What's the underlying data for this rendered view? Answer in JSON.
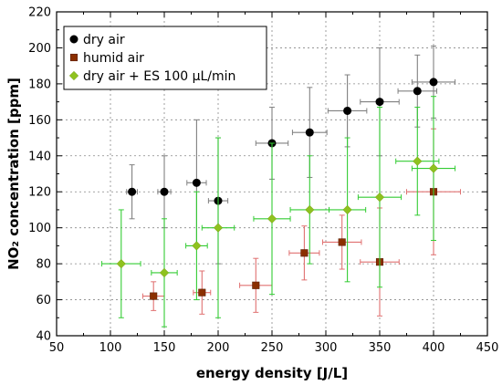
{
  "chart_data": {
    "type": "scatter",
    "xlabel": "energy density [J/L]",
    "ylabel": "NO₂ concentration [ppm]",
    "xlim": [
      50,
      450
    ],
    "ylim": [
      40,
      220
    ],
    "xticks": [
      50,
      100,
      150,
      200,
      250,
      300,
      350,
      400,
      450
    ],
    "yticks": [
      40,
      60,
      80,
      100,
      120,
      140,
      160,
      180,
      200,
      220
    ],
    "grid": true,
    "legend": "top-left",
    "series": [
      {
        "name": "dry air",
        "marker": "circle",
        "color": "#000000",
        "error_color": "#808080",
        "points": [
          {
            "x": 120,
            "y": 120,
            "xerr": 5,
            "yerr": 15
          },
          {
            "x": 150,
            "y": 120,
            "xerr": 6,
            "yerr": 20
          },
          {
            "x": 180,
            "y": 125,
            "xerr": 9,
            "yerr": 35
          },
          {
            "x": 200,
            "y": 115,
            "xerr": 9,
            "yerr": 35
          },
          {
            "x": 250,
            "y": 147,
            "xerr": 15,
            "yerr": 20
          },
          {
            "x": 285,
            "y": 153,
            "xerr": 16,
            "yerr": 25
          },
          {
            "x": 320,
            "y": 165,
            "xerr": 18,
            "yerr": 20
          },
          {
            "x": 350,
            "y": 170,
            "xerr": 18,
            "yerr": 30
          },
          {
            "x": 385,
            "y": 176,
            "xerr": 18,
            "yerr": 20
          },
          {
            "x": 400,
            "y": 181,
            "xerr": 20,
            "yerr": 20
          }
        ]
      },
      {
        "name": "humid air",
        "marker": "square",
        "color": "#8b2f00",
        "error_color": "#e07070",
        "points": [
          {
            "x": 140,
            "y": 62,
            "xerr": 10,
            "yerr": 8
          },
          {
            "x": 185,
            "y": 64,
            "xerr": 8,
            "yerr": 12
          },
          {
            "x": 235,
            "y": 68,
            "xerr": 15,
            "yerr": 15
          },
          {
            "x": 280,
            "y": 86,
            "xerr": 14,
            "yerr": 15
          },
          {
            "x": 315,
            "y": 92,
            "xerr": 18,
            "yerr": 15
          },
          {
            "x": 350,
            "y": 81,
            "xerr": 18,
            "yerr": 30
          },
          {
            "x": 400,
            "y": 120,
            "xerr": 25,
            "yerr": 35
          }
        ]
      },
      {
        "name": "dry air + ES 100 µL/min",
        "marker": "diamond",
        "color": "#8fc21f",
        "error_color": "#33cc33",
        "points": [
          {
            "x": 110,
            "y": 80,
            "xerr": 18,
            "yerr": 30
          },
          {
            "x": 150,
            "y": 75,
            "xerr": 12,
            "yerr": 30
          },
          {
            "x": 180,
            "y": 90,
            "xerr": 10,
            "yerr": 30
          },
          {
            "x": 200,
            "y": 100,
            "xerr": 15,
            "yerr": 50
          },
          {
            "x": 250,
            "y": 105,
            "xerr": 17,
            "yerr": 42
          },
          {
            "x": 285,
            "y": 110,
            "xerr": 18,
            "yerr": 30
          },
          {
            "x": 320,
            "y": 110,
            "xerr": 17,
            "yerr": 40
          },
          {
            "x": 350,
            "y": 117,
            "xerr": 20,
            "yerr": 50
          },
          {
            "x": 385,
            "y": 137,
            "xerr": 20,
            "yerr": 30
          },
          {
            "x": 400,
            "y": 133,
            "xerr": 20,
            "yerr": 40
          }
        ]
      }
    ]
  }
}
